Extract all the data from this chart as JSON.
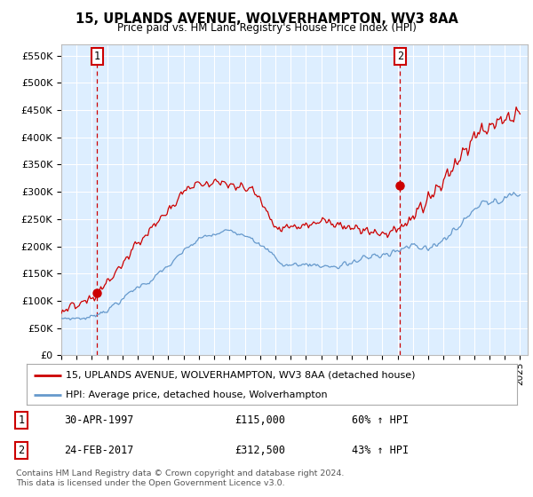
{
  "title1": "15, UPLANDS AVENUE, WOLVERHAMPTON, WV3 8AA",
  "title2": "Price paid vs. HM Land Registry's House Price Index (HPI)",
  "ylabel_ticks": [
    "£0",
    "£50K",
    "£100K",
    "£150K",
    "£200K",
    "£250K",
    "£300K",
    "£350K",
    "£400K",
    "£450K",
    "£500K",
    "£550K"
  ],
  "ytick_vals": [
    0,
    50000,
    100000,
    150000,
    200000,
    250000,
    300000,
    350000,
    400000,
    450000,
    500000,
    550000
  ],
  "ylim": [
    0,
    570000
  ],
  "xlim_start": 1995.0,
  "xlim_end": 2025.5,
  "sale1_x": 1997.33,
  "sale1_y": 115000,
  "sale2_x": 2017.15,
  "sale2_y": 312500,
  "legend_line1": "15, UPLANDS AVENUE, WOLVERHAMPTON, WV3 8AA (detached house)",
  "legend_line2": "HPI: Average price, detached house, Wolverhampton",
  "annot1_date": "30-APR-1997",
  "annot1_price": "£115,000",
  "annot1_hpi": "60% ↑ HPI",
  "annot2_date": "24-FEB-2017",
  "annot2_price": "£312,500",
  "annot2_hpi": "43% ↑ HPI",
  "footer": "Contains HM Land Registry data © Crown copyright and database right 2024.\nThis data is licensed under the Open Government Licence v3.0.",
  "red_color": "#cc0000",
  "blue_color": "#6699cc",
  "plot_bg": "#ddeeff"
}
